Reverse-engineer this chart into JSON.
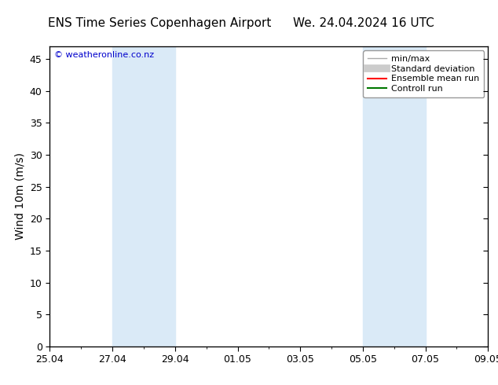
{
  "title_left": "ENS Time Series Copenhagen Airport",
  "title_right": "We. 24.04.2024 16 UTC",
  "ylabel": "Wind 10m (m/s)",
  "watermark": "© weatheronline.co.nz",
  "ylim": [
    0,
    47
  ],
  "yticks": [
    0,
    5,
    10,
    15,
    20,
    25,
    30,
    35,
    40,
    45
  ],
  "xtick_labels": [
    "25.04",
    "27.04",
    "29.04",
    "01.05",
    "03.05",
    "05.05",
    "07.05",
    "09.05"
  ],
  "xtick_positions": [
    0,
    2,
    4,
    6,
    8,
    10,
    12,
    14
  ],
  "x_total_days": 14,
  "shaded_bands": [
    {
      "x_start": 2,
      "x_end": 4
    },
    {
      "x_start": 10,
      "x_end": 12
    }
  ],
  "shaded_color": "#daeaf7",
  "bg_color": "#ffffff",
  "plot_bg_color": "#ffffff",
  "legend_entries": [
    {
      "label": "min/max",
      "color": "#aaaaaa",
      "lw": 1.0
    },
    {
      "label": "Standard deviation",
      "color": "#cccccc",
      "lw": 7
    },
    {
      "label": "Ensemble mean run",
      "color": "#ff0000",
      "lw": 1.5
    },
    {
      "label": "Controll run",
      "color": "#007700",
      "lw": 1.5
    }
  ],
  "title_fontsize": 11,
  "label_fontsize": 10,
  "tick_fontsize": 9,
  "watermark_color": "#0000cc",
  "watermark_fontsize": 8,
  "legend_fontsize": 8
}
